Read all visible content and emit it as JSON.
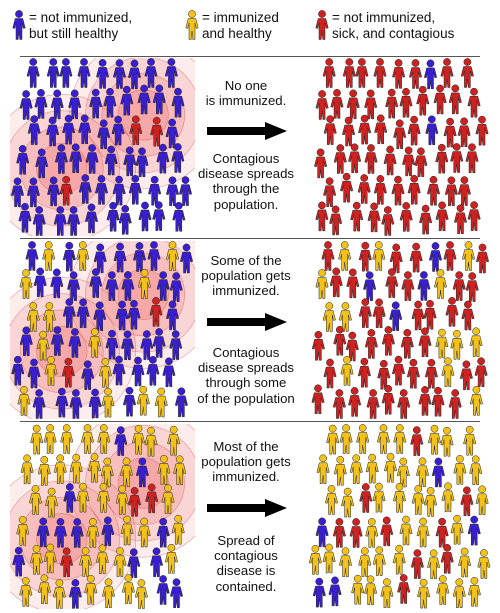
{
  "colors": {
    "not_immunized": "#3a1fd0",
    "immunized": "#f2c21b",
    "sick": "#cc2222",
    "zone": "#f07070"
  },
  "legend": [
    {
      "label_line1": "= not immunized,",
      "label_line2": "but still healthy",
      "status": "not_immunized"
    },
    {
      "label_line1": "= immunized",
      "label_line2": "and healthy",
      "status": "immunized"
    },
    {
      "label_line1": "= not immunized,",
      "label_line2": "sick, and contagious",
      "status": "sick"
    }
  ],
  "rows": [
    {
      "caption_top": [
        "No one",
        "is immunized."
      ],
      "caption_bottom": [
        "Contagious",
        "disease spreads",
        "through the",
        "population."
      ],
      "before_immunized_fraction": 0.0,
      "after_blue_fraction": 0.05
    },
    {
      "caption_top": [
        "Some of the",
        "population gets",
        "immunized."
      ],
      "caption_bottom": [
        "Contagious",
        "disease spreads",
        "through some",
        "of the population"
      ],
      "before_immunized_fraction": 0.2,
      "after_blue_fraction": 0.05
    },
    {
      "caption_top": [
        "Most of the",
        "population gets",
        "immunized."
      ],
      "caption_bottom": [
        "Spread of",
        "contagious",
        "disease is",
        "contained."
      ],
      "before_immunized_fraction": 0.75,
      "after_blue_fraction": 0.06
    }
  ]
}
